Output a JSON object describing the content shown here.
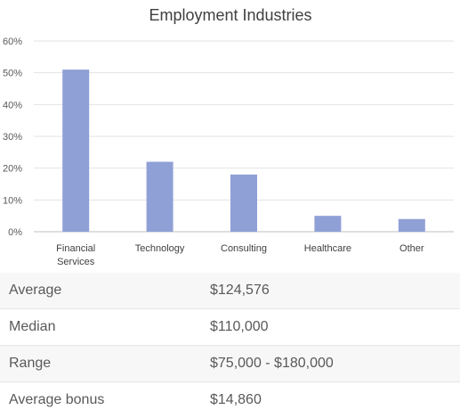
{
  "chart_data": {
    "type": "bar",
    "title": "Employment Industries",
    "categories": [
      "Financial Services",
      "Technology",
      "Consulting",
      "Healthcare",
      "Other"
    ],
    "values": [
      51,
      22,
      18,
      5,
      4
    ],
    "ylim": [
      0,
      60
    ],
    "y_ticks": [
      "0%",
      "10%",
      "20%",
      "30%",
      "40%",
      "50%",
      "60%"
    ],
    "xlabel": "",
    "ylabel": "",
    "bar_color": "#8fa0d6",
    "grid": true
  },
  "stats": [
    {
      "label": "Average",
      "value": "$124,576"
    },
    {
      "label": "Median",
      "value": "$110,000"
    },
    {
      "label": "Range",
      "value": "$75,000 - $180,000"
    },
    {
      "label": "Average bonus",
      "value": "$14,860"
    }
  ]
}
